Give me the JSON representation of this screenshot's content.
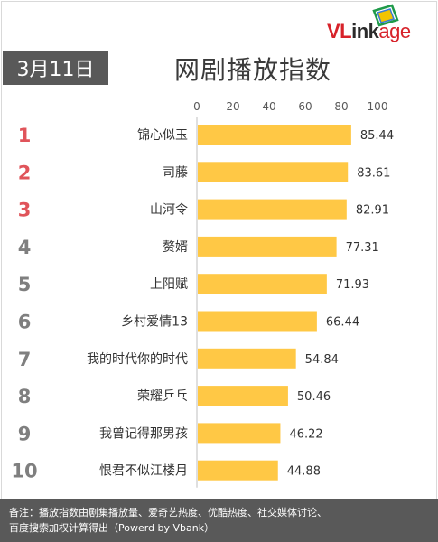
{
  "header": {
    "date": "3月11日",
    "title": "网剧播放指数",
    "logo": {
      "prefix": "VL",
      "middle": "ink",
      "suffix": "age"
    }
  },
  "colors": {
    "bar": "#FFC845",
    "rank_top": "#E0545A",
    "rank_other": "#7F7F7F",
    "badge": "#595959"
  },
  "chart_data": {
    "type": "bar",
    "orientation": "horizontal",
    "title": "网剧播放指数",
    "categories": [
      "锦心似玉",
      "司藤",
      "山河令",
      "赘婿",
      "上阳赋",
      "乡村爱情13",
      "我的时代你的时代",
      "荣耀乒乓",
      "我曾记得那男孩",
      "恨君不似江楼月"
    ],
    "ranks": [
      "1",
      "2",
      "3",
      "4",
      "5",
      "6",
      "7",
      "8",
      "9",
      "10"
    ],
    "values": [
      85.44,
      83.61,
      82.91,
      77.31,
      71.93,
      66.44,
      54.84,
      50.46,
      46.22,
      44.88
    ],
    "xlim": [
      0,
      100
    ],
    "xticks": [
      0,
      20,
      40,
      60,
      80,
      100
    ],
    "axis_position": "top",
    "grid": false,
    "legend": "none"
  },
  "footer": {
    "line1": "备注：播放指数由剧集播放量、爱奇艺热度、优酷热度、社交媒体讨论、",
    "line2": "百度搜索加权计算得出（Powerd by Vbank）"
  }
}
